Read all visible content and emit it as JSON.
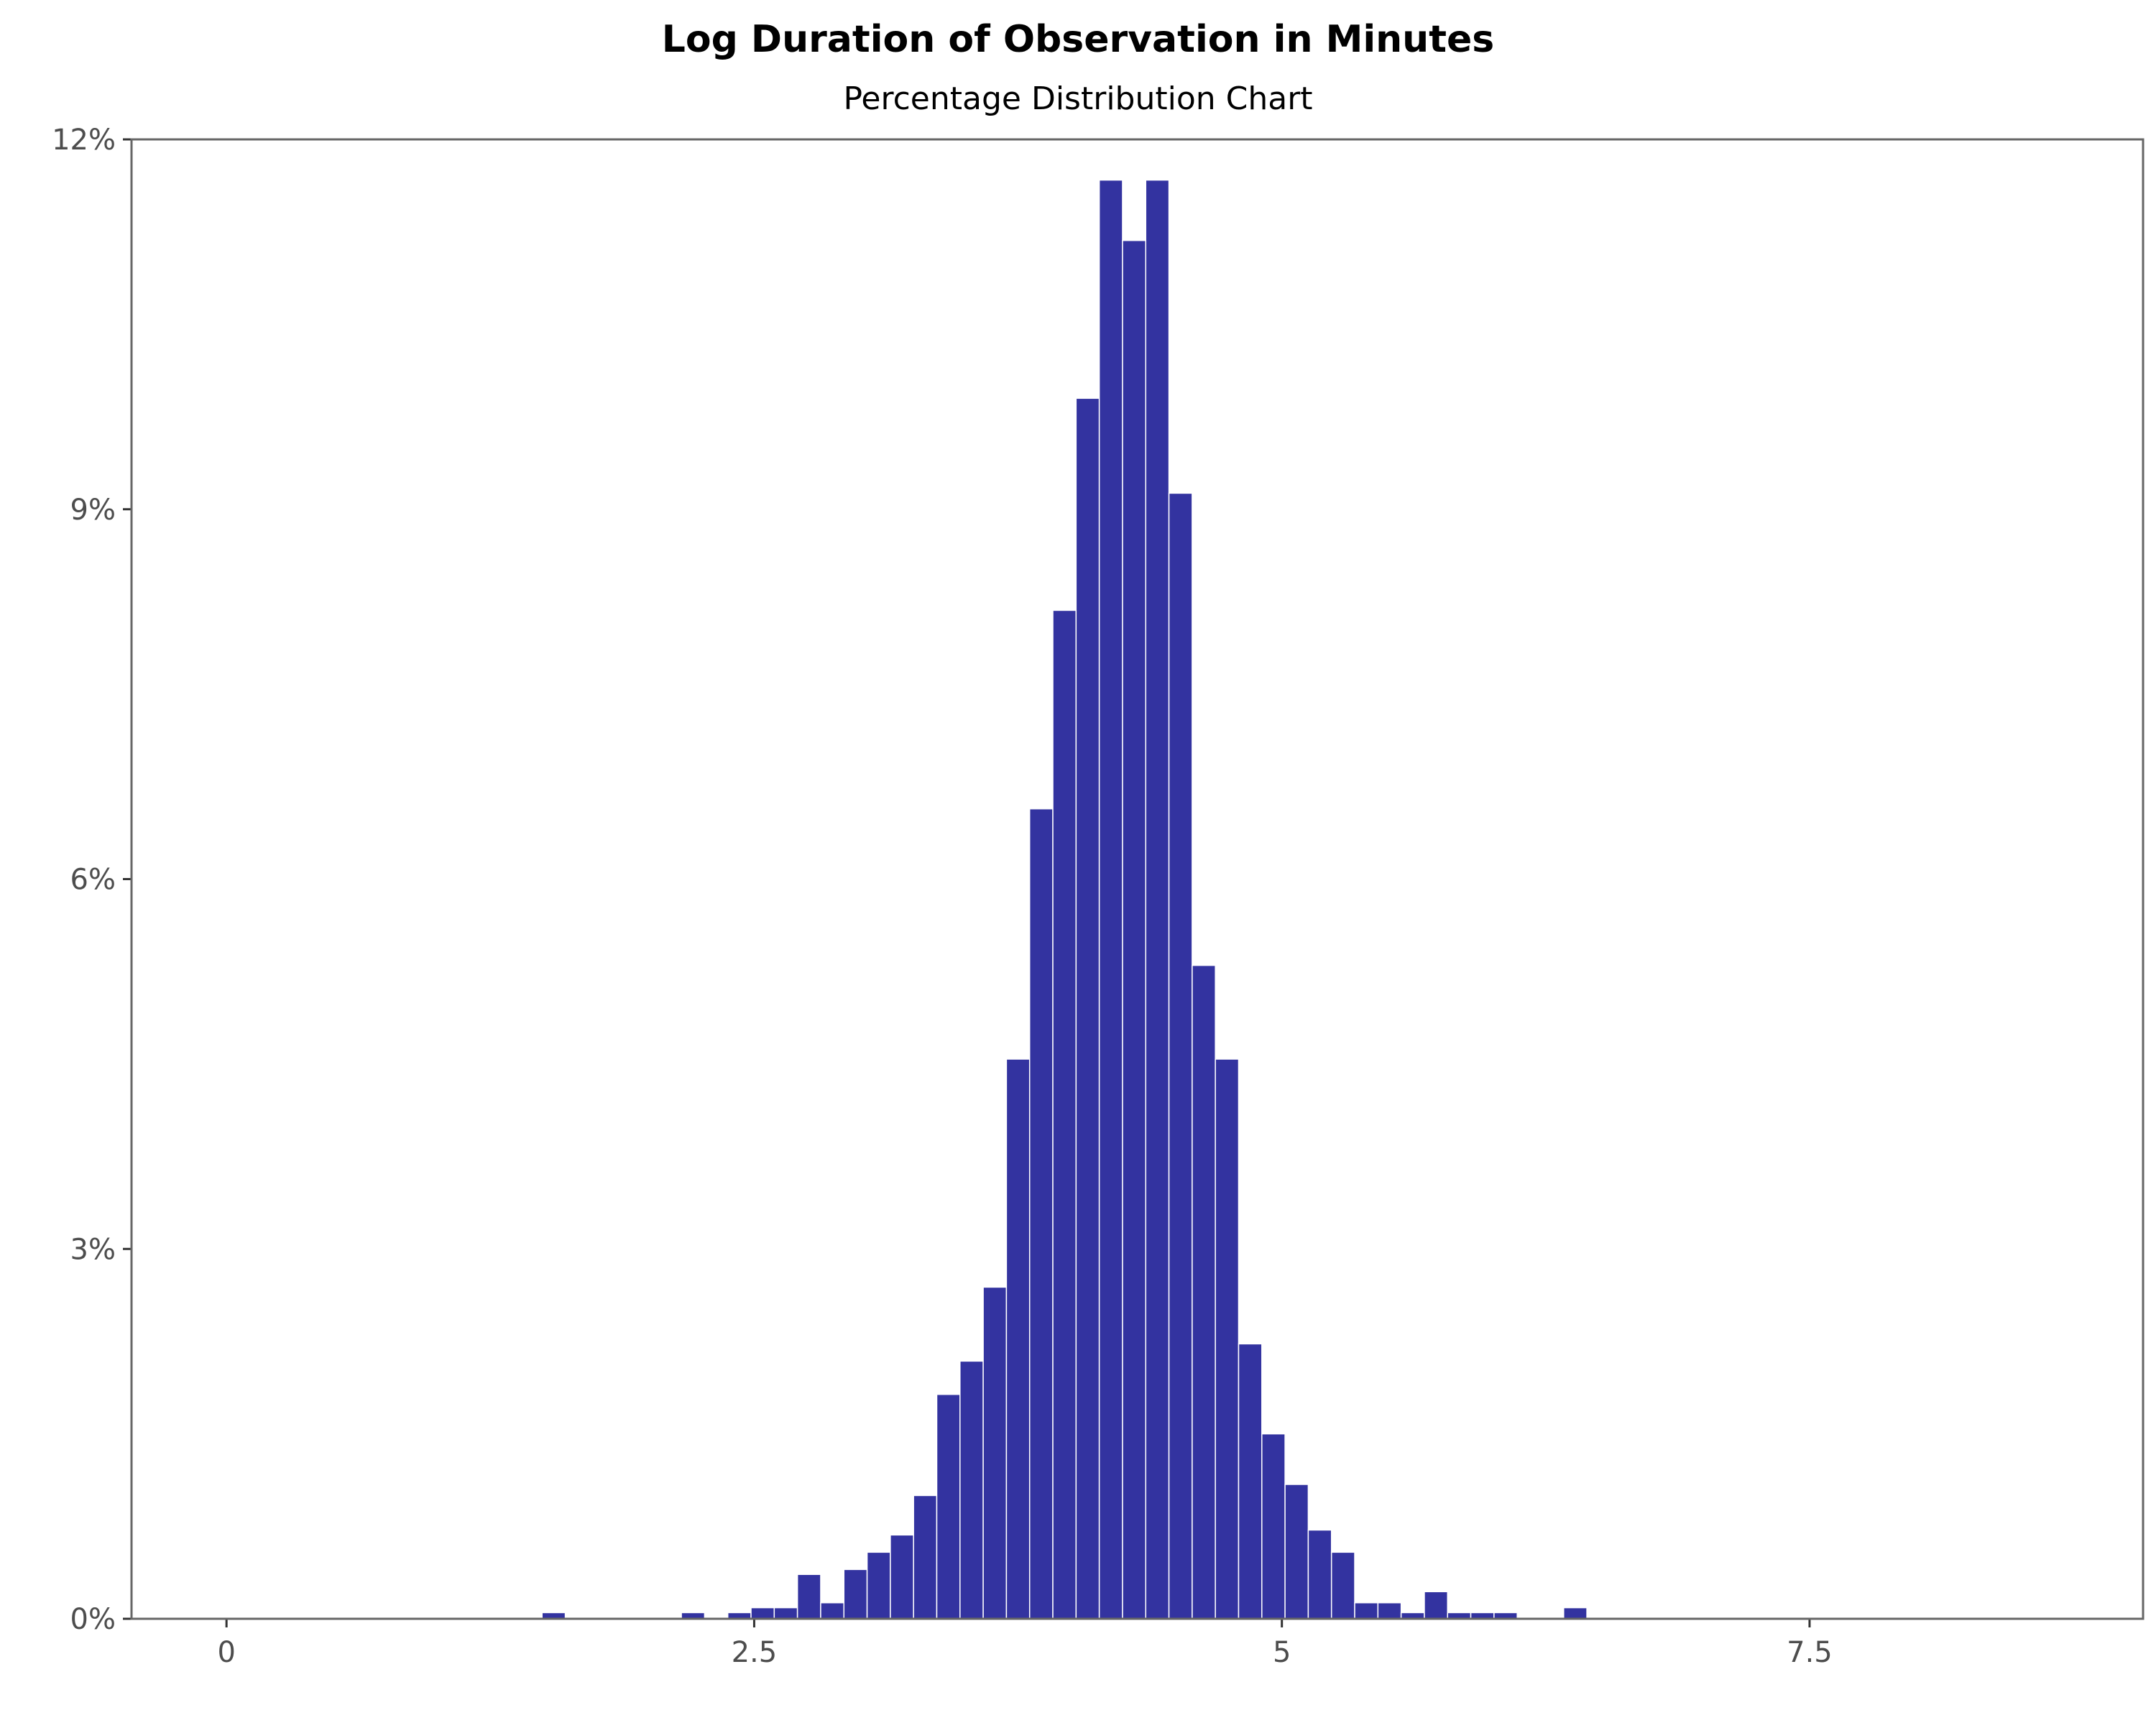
{
  "chart_data": {
    "type": "bar",
    "title": "Log Duration of Observation in Minutes",
    "subtitle": "Percentage Distribution Chart",
    "xlabel": "",
    "ylabel": "",
    "xlim": [
      -0.45,
      9.08
    ],
    "ylim": [
      0,
      12
    ],
    "x_ticks": [
      {
        "value": 0,
        "label": "0"
      },
      {
        "value": 2.5,
        "label": "2.5"
      },
      {
        "value": 5,
        "label": "5"
      },
      {
        "value": 7.5,
        "label": "7.5"
      }
    ],
    "y_ticks": [
      {
        "value": 0,
        "label": "0%"
      },
      {
        "value": 3,
        "label": "3%"
      },
      {
        "value": 6,
        "label": "6%"
      },
      {
        "value": 9,
        "label": "9%"
      },
      {
        "value": 12,
        "label": "12%"
      }
    ],
    "grid": false,
    "legend": "none",
    "bar_color": "#3333a0",
    "bar_edge_color": "#ffffff",
    "bin_width": 0.11,
    "bins": [
      {
        "x": 1.55,
        "value": 0.05
      },
      {
        "x": 2.21,
        "value": 0.05
      },
      {
        "x": 2.43,
        "value": 0.05
      },
      {
        "x": 2.54,
        "value": 0.09
      },
      {
        "x": 2.65,
        "value": 0.09
      },
      {
        "x": 2.76,
        "value": 0.36
      },
      {
        "x": 2.87,
        "value": 0.13
      },
      {
        "x": 2.98,
        "value": 0.4
      },
      {
        "x": 3.09,
        "value": 0.54
      },
      {
        "x": 3.2,
        "value": 0.68
      },
      {
        "x": 3.31,
        "value": 1.0
      },
      {
        "x": 3.42,
        "value": 1.82
      },
      {
        "x": 3.53,
        "value": 2.09
      },
      {
        "x": 3.64,
        "value": 2.69
      },
      {
        "x": 3.75,
        "value": 4.54
      },
      {
        "x": 3.86,
        "value": 6.57
      },
      {
        "x": 3.97,
        "value": 8.18
      },
      {
        "x": 4.08,
        "value": 9.9
      },
      {
        "x": 4.19,
        "value": 11.67
      },
      {
        "x": 4.3,
        "value": 11.18
      },
      {
        "x": 4.41,
        "value": 11.67
      },
      {
        "x": 4.52,
        "value": 9.13
      },
      {
        "x": 4.63,
        "value": 5.3
      },
      {
        "x": 4.74,
        "value": 4.54
      },
      {
        "x": 4.85,
        "value": 2.23
      },
      {
        "x": 4.96,
        "value": 1.5
      },
      {
        "x": 5.07,
        "value": 1.09
      },
      {
        "x": 5.18,
        "value": 0.72
      },
      {
        "x": 5.29,
        "value": 0.54
      },
      {
        "x": 5.4,
        "value": 0.13
      },
      {
        "x": 5.51,
        "value": 0.13
      },
      {
        "x": 5.62,
        "value": 0.05
      },
      {
        "x": 5.73,
        "value": 0.22
      },
      {
        "x": 5.84,
        "value": 0.05
      },
      {
        "x": 5.95,
        "value": 0.05
      },
      {
        "x": 6.06,
        "value": 0.05
      },
      {
        "x": 6.39,
        "value": 0.09
      }
    ]
  }
}
